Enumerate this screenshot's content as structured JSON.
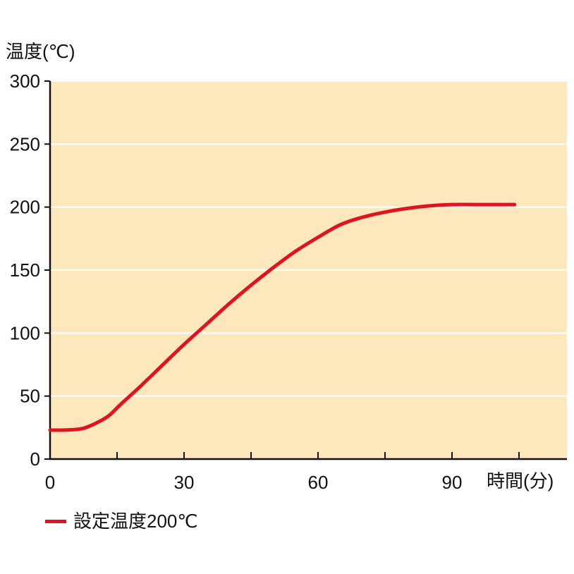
{
  "chart_data": {
    "type": "line",
    "ylabel": "温度(℃)",
    "xlabel": "時間(分)",
    "x_ticks": [
      "0",
      "30",
      "60",
      "90"
    ],
    "y_ticks": [
      "0",
      "50",
      "100",
      "150",
      "200",
      "250",
      "300"
    ],
    "xlim": [
      0,
      105
    ],
    "ylim": [
      0,
      300
    ],
    "grid": true,
    "legend_position": "bottom-left",
    "colors": {
      "plot_background": "#fde8bd",
      "grid": "#ffffff",
      "axis": "#111111",
      "line": "#e0141e"
    },
    "series": [
      {
        "name": "設定温度200℃",
        "x": [
          0,
          3,
          7,
          10,
          13,
          16,
          20,
          25,
          30,
          35,
          40,
          45,
          50,
          55,
          60,
          65,
          70,
          75,
          80,
          85,
          90,
          95,
          100,
          104
        ],
        "y": [
          23,
          23,
          24,
          28,
          34,
          44,
          57,
          74,
          91,
          107,
          123,
          138,
          152,
          165,
          176,
          186,
          192,
          196,
          199,
          201,
          202,
          202,
          202,
          202
        ]
      }
    ]
  }
}
